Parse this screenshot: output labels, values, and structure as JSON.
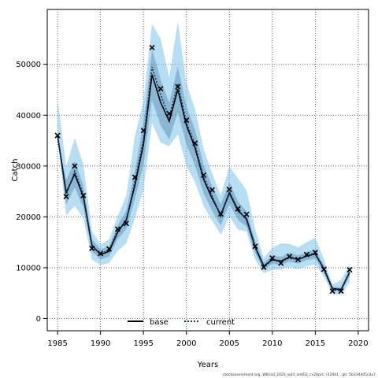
{
  "chart_data": {
    "type": "line",
    "xlabel": "Years",
    "ylabel": "Catch",
    "xlim": [
      1983.8,
      2021.2
    ],
    "ylim": [
      -2400,
      60800
    ],
    "x_ticks": [
      1985,
      1990,
      1995,
      2000,
      2005,
      2010,
      2015,
      2020
    ],
    "y_ticks": [
      0,
      10000,
      20000,
      30000,
      40000,
      50000
    ],
    "grid": true,
    "legend_position": "bottom-center",
    "x": [
      1985,
      1986,
      1987,
      1988,
      1989,
      1990,
      1991,
      1992,
      1993,
      1994,
      1995,
      1996,
      1997,
      1998,
      1999,
      2000,
      2001,
      2002,
      2003,
      2004,
      2005,
      2006,
      2007,
      2008,
      2009,
      2010,
      2011,
      2012,
      2013,
      2014,
      2015,
      2016,
      2017,
      2018,
      2019
    ],
    "observed_catch": [
      36000,
      24000,
      30000,
      24200,
      13800,
      12800,
      13700,
      17600,
      18700,
      27800,
      37000,
      53300,
      45200,
      40300,
      45600,
      39000,
      34500,
      28200,
      25300,
      20600,
      25400,
      21600,
      20500,
      14200,
      10100,
      11900,
      10900,
      12200,
      11600,
      12600,
      13000,
      9700,
      5400,
      5400,
      9600
    ],
    "series": [
      {
        "name": "base",
        "color": "#000000",
        "style": "solid",
        "values": [
          36000,
          24800,
          28400,
          24000,
          14400,
          12600,
          13200,
          17000,
          19400,
          26200,
          34300,
          48000,
          42500,
          38800,
          45100,
          38000,
          33600,
          27400,
          23600,
          20400,
          24700,
          21200,
          19600,
          14100,
          10300,
          11600,
          11300,
          12100,
          11600,
          12300,
          12700,
          9800,
          5900,
          5700,
          9100
        ],
        "band_inner_low": [
          36000,
          22400,
          25800,
          21800,
          13200,
          11600,
          12200,
          15600,
          17600,
          23500,
          30200,
          43000,
          38000,
          35200,
          40600,
          34200,
          30100,
          24600,
          21200,
          18300,
          22600,
          19400,
          18100,
          12900,
          9600,
          10800,
          10500,
          11200,
          10800,
          11500,
          11800,
          9100,
          5500,
          5300,
          8400
        ],
        "band_inner_high": [
          36000,
          27200,
          31000,
          26200,
          15600,
          13600,
          14200,
          18400,
          21200,
          29000,
          38400,
          53000,
          47000,
          42400,
          49600,
          41800,
          37100,
          30200,
          26000,
          22500,
          26800,
          23000,
          21100,
          15300,
          11000,
          12400,
          12100,
          13000,
          12400,
          13100,
          13600,
          10500,
          6300,
          6100,
          9800
        ]
      },
      {
        "name": "current",
        "color": "#0b3a6e",
        "style": "dotted",
        "values": [
          36000,
          24200,
          29000,
          24400,
          14200,
          12700,
          13500,
          17400,
          19000,
          27000,
          35200,
          49500,
          44000,
          39600,
          46100,
          38600,
          34200,
          27800,
          24100,
          20100,
          25000,
          21500,
          19300,
          13900,
          10100,
          11500,
          11100,
          12000,
          11600,
          12400,
          12900,
          9600,
          5600,
          5500,
          9200
        ],
        "band_outer_low": [
          36000,
          20300,
          22200,
          19700,
          11600,
          10500,
          10900,
          13300,
          14800,
          19700,
          25400,
          38500,
          34600,
          33900,
          36200,
          30000,
          26800,
          22200,
          19200,
          16500,
          20100,
          17500,
          17100,
          11600,
          8900,
          9600,
          9700,
          10200,
          9700,
          10300,
          10600,
          8300,
          4800,
          4700,
          7100
        ],
        "band_outer_high": [
          43300,
          29900,
          35500,
          30300,
          17200,
          14600,
          15600,
          20100,
          24200,
          35800,
          42800,
          58000,
          55000,
          47400,
          58400,
          46200,
          41200,
          33400,
          28500,
          24200,
          29900,
          27600,
          25200,
          17600,
          11900,
          13900,
          14800,
          14700,
          14000,
          15000,
          15900,
          11700,
          6700,
          7500,
          10800
        ]
      }
    ],
    "legend": [
      "base",
      "current"
    ]
  },
  "footnote": "stockassessment.org, WBcod_2020_split_an002_cv20pct, r12441 , git: 5b334405cda7"
}
